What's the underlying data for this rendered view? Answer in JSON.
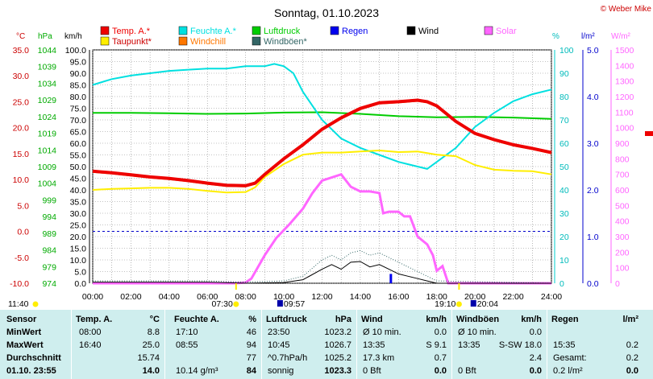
{
  "title": "Sonntag, 01.10.2023",
  "copyright": "© Weber Mike",
  "colors": {
    "temp": "#ee0000",
    "humidity": "#00e0e0",
    "pressure": "#00cc00",
    "wind": "#000000",
    "dewpoint": "#ffee00",
    "windchill": "#ff7700",
    "gusts": "#336666",
    "rain": "#0000ee",
    "solar": "#ff66ff"
  },
  "legend": [
    {
      "label": "Temp. A.*",
      "color": "#ee0000"
    },
    {
      "label": "Feuchte A.*",
      "color": "#00e0e0"
    },
    {
      "label": "Luftdruck",
      "color": "#00cc00"
    },
    {
      "label": "Regen",
      "color": "#0000ee"
    },
    {
      "label": "Wind",
      "color": "#000000"
    },
    {
      "label": "Solar",
      "color": "#ff66ff"
    },
    {
      "label": "Taupunkt*",
      "color": "#ffee00"
    },
    {
      "label": "Windchill",
      "color": "#ff7700"
    },
    {
      "label": "Windböen*",
      "color": "#336666"
    }
  ],
  "axis_units": {
    "celsius": "°C",
    "hpa": "hPa",
    "kmh": "km/h",
    "percent": "%",
    "rain": "l/m²",
    "solar": "W/m²"
  },
  "axes": {
    "celsius_ticks": [
      "35.0",
      "30.0",
      "25.0",
      "20.0",
      "15.0",
      "10.0",
      "5.0",
      "0.0",
      "-5.0",
      "-10.0"
    ],
    "hpa_ticks": [
      "1044",
      "1039",
      "1034",
      "1029",
      "1024",
      "1019",
      "1014",
      "1009",
      "1004",
      "999",
      "994",
      "989",
      "984",
      "979",
      "974"
    ],
    "kmh_ticks": [
      "100.0",
      "95.0",
      "90.0",
      "85.0",
      "80.0",
      "75.0",
      "70.0",
      "65.0",
      "60.0",
      "55.0",
      "50.0",
      "45.0",
      "40.0",
      "35.0",
      "30.0",
      "25.0",
      "20.0",
      "15.0",
      "10.0",
      "5.0",
      "0.0"
    ],
    "percent_ticks": [
      "100",
      "90",
      "80",
      "70",
      "60",
      "50",
      "40",
      "30",
      "20",
      "10",
      "0"
    ],
    "rain_ticks": [
      "5.0",
      "4.0",
      "3.0",
      "2.0",
      "1.0",
      "0.0"
    ],
    "solar_ticks": [
      "1500",
      "1400",
      "1300",
      "1200",
      "1100",
      "1000",
      "900",
      "800",
      "700",
      "600",
      "500",
      "400",
      "300",
      "200",
      "100",
      "0"
    ],
    "time_ticks": [
      "00:00",
      "02:00",
      "04:00",
      "06:00",
      "08:00",
      "10:00",
      "12:00",
      "14:00",
      "16:00",
      "18:00",
      "20:00",
      "22:00",
      "24:00"
    ]
  },
  "sun_markers": {
    "sunrise": "07:30",
    "sunset": "19:10",
    "moonrise": "11:40",
    "day_start": "09:57",
    "day_end": "20:04"
  },
  "chart_data": {
    "type": "line",
    "x_unit": "hours",
    "xlim": [
      0,
      24
    ],
    "series": [
      {
        "name": "Temp. A.*",
        "axis": "celsius",
        "ylim": [
          -10,
          35
        ],
        "x": [
          0,
          1,
          2,
          3,
          4,
          5,
          6,
          7,
          8,
          8.5,
          9,
          10,
          11,
          12,
          13,
          14,
          15,
          16,
          17,
          17.5,
          18,
          19,
          20,
          21,
          22,
          23,
          24
        ],
        "y": [
          11.6,
          11.3,
          10.9,
          10.5,
          10.2,
          9.8,
          9.3,
          8.9,
          8.8,
          9.3,
          11,
          14,
          16.7,
          19.7,
          21.9,
          23.7,
          24.8,
          25,
          25.3,
          25,
          24.2,
          21.2,
          18.9,
          17.7,
          16.7,
          16,
          15.2
        ]
      },
      {
        "name": "Taupunkt*",
        "axis": "celsius",
        "ylim": [
          -10,
          35
        ],
        "x": [
          0,
          1,
          2,
          3,
          4,
          5,
          6,
          7,
          8,
          8.5,
          9,
          10,
          11,
          12,
          13,
          14,
          15,
          16,
          17,
          18,
          19,
          20,
          21,
          22,
          23,
          24
        ],
        "y": [
          8,
          8.2,
          8.3,
          8.4,
          8.4,
          8.2,
          7.8,
          7.5,
          7.6,
          8.5,
          10.5,
          13,
          14.8,
          15.2,
          15.2,
          15.4,
          15.6,
          15.3,
          15.4,
          14.8,
          14.5,
          12.8,
          11.9,
          11.7,
          11.6,
          11
        ]
      },
      {
        "name": "Feuchte A.*",
        "axis": "percent",
        "ylim": [
          0,
          100
        ],
        "x": [
          0,
          1,
          2,
          3,
          4,
          5,
          6,
          7,
          8,
          9,
          9.5,
          10,
          10.5,
          11,
          12,
          13,
          14,
          15,
          16,
          17,
          17.5,
          18,
          19,
          20,
          21,
          22,
          23,
          24
        ],
        "y": [
          85,
          87.5,
          89,
          90,
          91,
          91.5,
          92,
          92,
          93,
          93,
          94,
          93,
          90,
          82,
          70,
          62,
          58,
          55,
          52,
          50,
          49,
          52,
          58,
          67,
          73,
          78,
          81,
          83
        ]
      },
      {
        "name": "Luftdruck",
        "axis": "hpa",
        "ylim": [
          974,
          1044
        ],
        "x": [
          0,
          2,
          4,
          6,
          8,
          10,
          12,
          14,
          16,
          18,
          20,
          22,
          24
        ],
        "y": [
          1025.1,
          1025.1,
          1025.0,
          1024.8,
          1024.9,
          1025.2,
          1025.3,
          1024.8,
          1024.1,
          1023.8,
          1023.9,
          1023.7,
          1023.3
        ]
      },
      {
        "name": "Solar",
        "axis": "solar",
        "ylim": [
          0,
          1500
        ],
        "x": [
          0,
          7.5,
          8,
          8.3,
          9,
          9.6,
          10.3,
          11,
          11.5,
          12,
          13,
          13.5,
          14,
          14.5,
          15,
          15.2,
          15.5,
          16,
          16.3,
          16.6,
          17,
          17.5,
          17.8,
          18,
          18.3,
          18.6,
          19,
          24
        ],
        "y": [
          0,
          0,
          5,
          30,
          180,
          290,
          380,
          480,
          580,
          660,
          700,
          620,
          590,
          590,
          580,
          450,
          460,
          460,
          430,
          430,
          300,
          250,
          180,
          80,
          110,
          0,
          0,
          0
        ]
      },
      {
        "name": "Wind",
        "axis": "kmh",
        "x": [
          0,
          6,
          8,
          10,
          11,
          12,
          12.5,
          13,
          13.5,
          14,
          14.5,
          15,
          15.5,
          16,
          16.5,
          17,
          17.5,
          18,
          24
        ],
        "y": [
          0.5,
          0.5,
          0,
          0.3,
          1.5,
          6,
          8,
          6,
          9,
          9.3,
          7,
          8,
          6,
          4,
          3,
          2,
          1,
          0,
          0
        ]
      },
      {
        "name": "Windböen*",
        "axis": "kmh",
        "x": [
          0,
          6,
          8,
          10,
          11,
          12,
          12.5,
          13,
          13.5,
          14,
          14.5,
          15,
          15.5,
          16,
          16.5,
          17,
          17.5,
          18,
          24
        ],
        "y": [
          1,
          1,
          0.5,
          1,
          3,
          10,
          12,
          10,
          13,
          14,
          12,
          13,
          11,
          9,
          7,
          5,
          3,
          1,
          0
        ]
      },
      {
        "name": "Regen",
        "axis": "rain",
        "ylim": [
          0,
          5
        ],
        "x": [
          15.6
        ],
        "y": [
          0.2
        ]
      }
    ]
  },
  "stats": {
    "headers": {
      "sensor": "Sensor",
      "temp": "Temp. A.",
      "temp_unit": "°C",
      "humidity": "Feuchte A.",
      "humidity_unit": "%",
      "pressure": "Luftdruck",
      "pressure_unit": "hPa",
      "wind": "Wind",
      "wind_unit": "km/h",
      "gusts": "Windböen",
      "gusts_unit": "km/h",
      "rain": "Regen",
      "rain_unit": "l/m²"
    },
    "rows": [
      {
        "label": "MinWert",
        "temp_t": "08:00",
        "temp_v": "8.8",
        "hum_t": "17:10",
        "hum_v": "46",
        "pres_t": "23:50",
        "pres_v": "1023.2",
        "wind_t": "Ø 10 min.",
        "wind_v": "0.0",
        "gust_t": "Ø 10 min.",
        "gust_v": "0.0",
        "rain_t": "",
        "rain_v": ""
      },
      {
        "label": "MaxWert",
        "temp_t": "16:40",
        "temp_v": "25.0",
        "hum_t": "08:55",
        "hum_v": "94",
        "pres_t": "10:45",
        "pres_v": "1026.7",
        "wind_t": "13:35",
        "wind_v": "S 9.1",
        "gust_t": "13:35",
        "gust_v": "S-SW 18.0",
        "rain_t": "15:35",
        "rain_v": "0.2"
      },
      {
        "label": "Durchschnitt",
        "temp_t": "",
        "temp_v": "15.74",
        "hum_t": "",
        "hum_v": "77",
        "pres_t": "^0.7hPa/h",
        "pres_v": "1025.2",
        "wind_t": "17.3 km",
        "wind_v": "0.7",
        "gust_t": "",
        "gust_v": "2.4",
        "rain_t": "Gesamt:",
        "rain_v": "0.2"
      },
      {
        "label": "01.10. 23:55",
        "temp_t": "",
        "temp_v": "14.0",
        "hum_t": "10.14 g/m³",
        "hum_v": "84",
        "pres_t": "sonnig",
        "pres_v": "1023.3",
        "wind_t": "0 Bft",
        "wind_v": "0.0",
        "gust_t": "0 Bft",
        "gust_v": "0.0",
        "rain_t": "0.2 l/m²",
        "rain_v": "0.0"
      }
    ]
  }
}
